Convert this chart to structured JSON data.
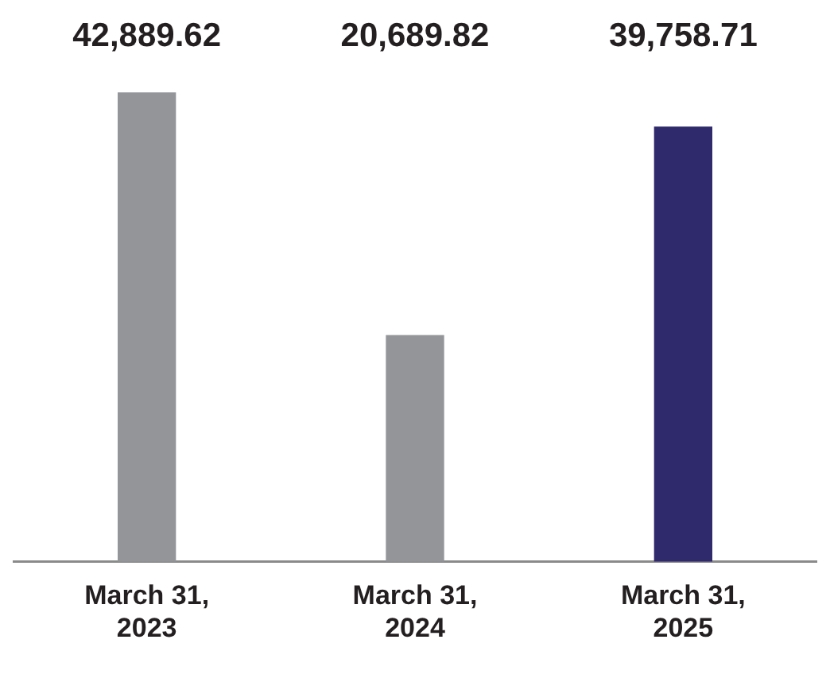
{
  "chart_data": {
    "type": "bar",
    "categories": [
      "March 31, 2023",
      "March 31, 2024",
      "March 31, 2025"
    ],
    "values": [
      42889.62,
      20689.82,
      39758.71
    ],
    "colors": [
      "#939598",
      "#939598",
      "#2e2a6b"
    ],
    "value_labels": [
      "42,889.62",
      "20,689.82",
      "39,758.71"
    ],
    "grid": false,
    "legend": false
  }
}
